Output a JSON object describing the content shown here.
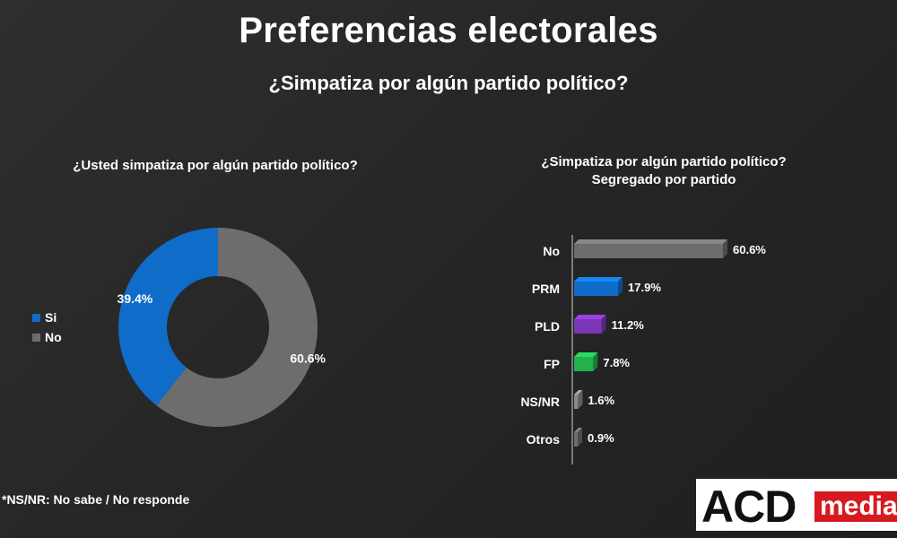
{
  "header": {
    "title": "Preferencias electorales",
    "subtitle": "¿Simpatiza por algún partido político?"
  },
  "chart_data": [
    {
      "type": "pie",
      "title": "¿Usted simpatiza por algún partido político?",
      "categories": [
        "Si",
        "No"
      ],
      "values": [
        39.4,
        60.6
      ],
      "value_labels": [
        "39.4%",
        "60.6%"
      ],
      "colors": [
        "#0f6cc9",
        "#6d6d6d"
      ],
      "donut": true,
      "legend": "left"
    },
    {
      "type": "bar",
      "orientation": "horizontal",
      "title": "¿Simpatiza por algún partido político?",
      "subtitle": "Segregado por partido",
      "categories": [
        "No",
        "PRM",
        "PLD",
        "FP",
        "NS/NR",
        "Otros"
      ],
      "values": [
        60.6,
        17.9,
        11.2,
        7.8,
        1.6,
        0.9
      ],
      "value_labels": [
        "60.6%",
        "17.9%",
        "11.2%",
        "7.8%",
        "1.6%",
        "0.9%"
      ],
      "colors": [
        "#6d6d6d",
        "#0f6cc9",
        "#7b35b5",
        "#22b14c",
        "#8a8a8a",
        "#6d6d6d"
      ],
      "xlim": [
        0,
        60.6
      ],
      "grid": false
    }
  ],
  "footnote": "*NS/NR: No sabe / No responde",
  "logo": {
    "part1": "ACD",
    "part2": "media"
  }
}
